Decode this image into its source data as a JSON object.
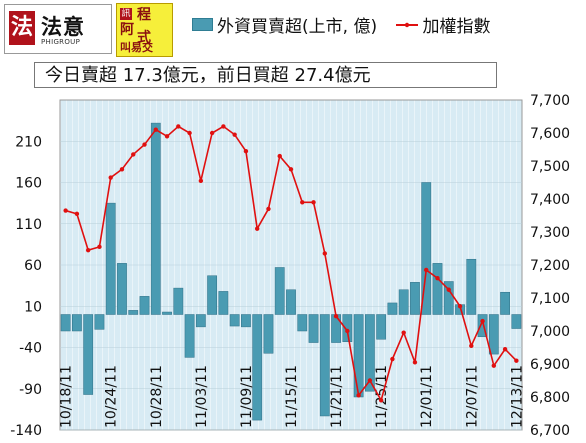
{
  "header": {
    "logo_faye": {
      "mark": "法",
      "name": "法意",
      "subtitle": "PHIGROUP"
    },
    "logo_program": {
      "mark": "訊",
      "line1": "程",
      "line2": "阿",
      "line3": "式",
      "line4": "叫易交"
    },
    "legend_bar_label": "外資買賣超(上市, 億)",
    "legend_line_label": "加權指數",
    "summary": "今日賣超 17.3億元，前日買超 27.4億元"
  },
  "colors": {
    "bar": "#4a9bb2",
    "bar_stroke": "#2f6f86",
    "line": "#e01010",
    "plot_bg": "#ddeef6",
    "plot_bg_stripe": "#eef7fb"
  },
  "chart_data": {
    "type": "bar+line",
    "left_axis": {
      "range": [
        -140,
        260
      ],
      "ticks": [
        -140,
        -90,
        -40,
        10,
        60,
        110,
        160,
        210
      ]
    },
    "right_axis": {
      "range": [
        6700,
        7700
      ],
      "ticks": [
        "6,700",
        "6,800",
        "6,900",
        "7,000",
        "7,100",
        "7,200",
        "7,300",
        "7,400",
        "7,500",
        "7,600",
        "7,700"
      ]
    },
    "x_tick_labels": [
      {
        "label": "10/18/11",
        "index": 0
      },
      {
        "label": "10/24/11",
        "index": 4
      },
      {
        "label": "10/28/11",
        "index": 8
      },
      {
        "label": "11/03/11",
        "index": 12
      },
      {
        "label": "11/09/11",
        "index": 16
      },
      {
        "label": "11/15/11",
        "index": 20
      },
      {
        "label": "11/21/11",
        "index": 24
      },
      {
        "label": "11/25/11",
        "index": 28
      },
      {
        "label": "12/01/11",
        "index": 32
      },
      {
        "label": "12/07/11",
        "index": 36
      },
      {
        "label": "12/13/11",
        "index": 40
      }
    ],
    "series": [
      {
        "name": "外資買賣超(上市, 億)",
        "axis": "left",
        "values": [
          -20,
          -20,
          -97,
          -18,
          135,
          62,
          5,
          22,
          232,
          3,
          32,
          -52,
          -15,
          47,
          28,
          -14,
          -15,
          -128,
          -47,
          57,
          30,
          -20,
          -34,
          -123,
          -34,
          -33,
          -100,
          -93,
          -30,
          14,
          30,
          39,
          160,
          62,
          40,
          12,
          67,
          -27,
          -48,
          27,
          -17
        ]
      },
      {
        "name": "加權指數",
        "axis": "right",
        "values": [
          7365,
          7355,
          7245,
          7255,
          7465,
          7490,
          7535,
          7565,
          7610,
          7590,
          7620,
          7600,
          7455,
          7600,
          7620,
          7595,
          7545,
          7310,
          7370,
          7530,
          7490,
          7390,
          7390,
          7235,
          7045,
          7000,
          6805,
          6850,
          6790,
          6915,
          6995,
          6905,
          7185,
          7160,
          7125,
          7075,
          6955,
          7030,
          6895,
          6945,
          6910
        ]
      }
    ]
  }
}
